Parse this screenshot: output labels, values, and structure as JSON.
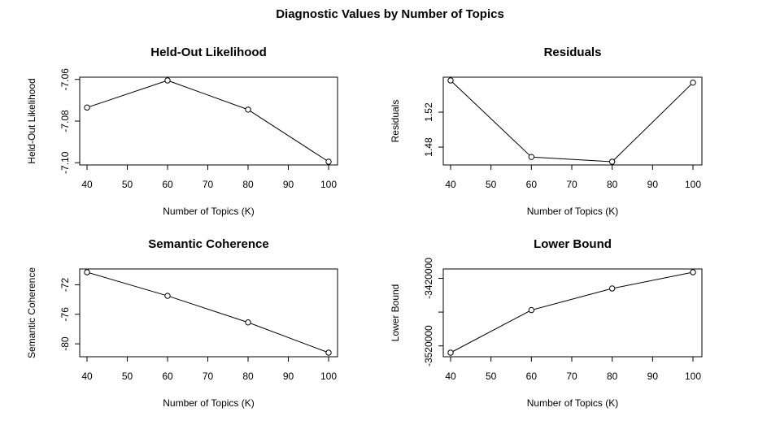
{
  "main_title": "Diagnostic Values by Number of Topics",
  "chart_data": [
    {
      "type": "line",
      "title": "Held-Out Likelihood",
      "xlabel": "Number of Topics (K)",
      "ylabel": "Held-Out Likelihood",
      "x": [
        40,
        60,
        80,
        100
      ],
      "values": [
        -7.0735,
        -7.0605,
        -7.0745,
        -7.0995
      ],
      "xlim": [
        40,
        100
      ],
      "ylim": [
        -7.1,
        -7.06
      ],
      "xticks": [
        40,
        50,
        60,
        70,
        80,
        90,
        100
      ],
      "xtick_labels": [
        "40",
        "50",
        "60",
        "70",
        "80",
        "90",
        "100"
      ],
      "yticks": [
        -7.06,
        -7.08,
        -7.1
      ],
      "ytick_labels": [
        "-7.06",
        "-7.08",
        "-7.10"
      ],
      "marker": "open-circle",
      "grid": false
    },
    {
      "type": "line",
      "title": "Residuals",
      "xlabel": "Number of Topics (K)",
      "ylabel": "Residuals",
      "x": [
        40,
        60,
        80,
        100
      ],
      "values": [
        1.5563,
        1.4687,
        1.4633,
        1.5538
      ],
      "xlim": [
        40,
        100
      ],
      "ylim": [
        1.48,
        1.52
      ],
      "xticks": [
        40,
        50,
        60,
        70,
        80,
        90,
        100
      ],
      "xtick_labels": [
        "40",
        "50",
        "60",
        "70",
        "80",
        "90",
        "100"
      ],
      "yticks": [
        1.48,
        1.52
      ],
      "ytick_labels": [
        "1.48",
        "1.52"
      ],
      "marker": "open-circle",
      "grid": false
    },
    {
      "type": "line",
      "title": "Semantic Coherence",
      "xlabel": "Number of Topics (K)",
      "ylabel": "Semantic Coherence",
      "x": [
        40,
        60,
        80,
        100
      ],
      "values": [
        -70.3,
        -73.5,
        -77.1,
        -81.2
      ],
      "xlim": [
        40,
        100
      ],
      "ylim": [
        -80,
        -72
      ],
      "xticks": [
        40,
        50,
        60,
        70,
        80,
        90,
        100
      ],
      "xtick_labels": [
        "40",
        "50",
        "60",
        "70",
        "80",
        "90",
        "100"
      ],
      "yticks": [
        -72,
        -76,
        -80
      ],
      "ytick_labels": [
        "-72",
        "-76",
        "-80"
      ],
      "marker": "open-circle",
      "grid": false
    },
    {
      "type": "line",
      "title": "Lower Bound",
      "xlabel": "Number of Topics (K)",
      "ylabel": "Lower Bound",
      "x": [
        40,
        60,
        80,
        100
      ],
      "values": [
        -3530000,
        -3467000,
        -3435000,
        -3411000
      ],
      "xlim": [
        40,
        100
      ],
      "ylim": [
        -3520000,
        -3420000
      ],
      "xticks": [
        40,
        50,
        60,
        70,
        80,
        90,
        100
      ],
      "xtick_labels": [
        "40",
        "50",
        "60",
        "70",
        "80",
        "90",
        "100"
      ],
      "yticks": [
        -3420000,
        -3520000
      ],
      "ytick_labels": [
        "-3420000",
        "-3520000"
      ],
      "minor_yticks": [
        -3470000
      ],
      "marker": "open-circle",
      "grid": false
    }
  ]
}
